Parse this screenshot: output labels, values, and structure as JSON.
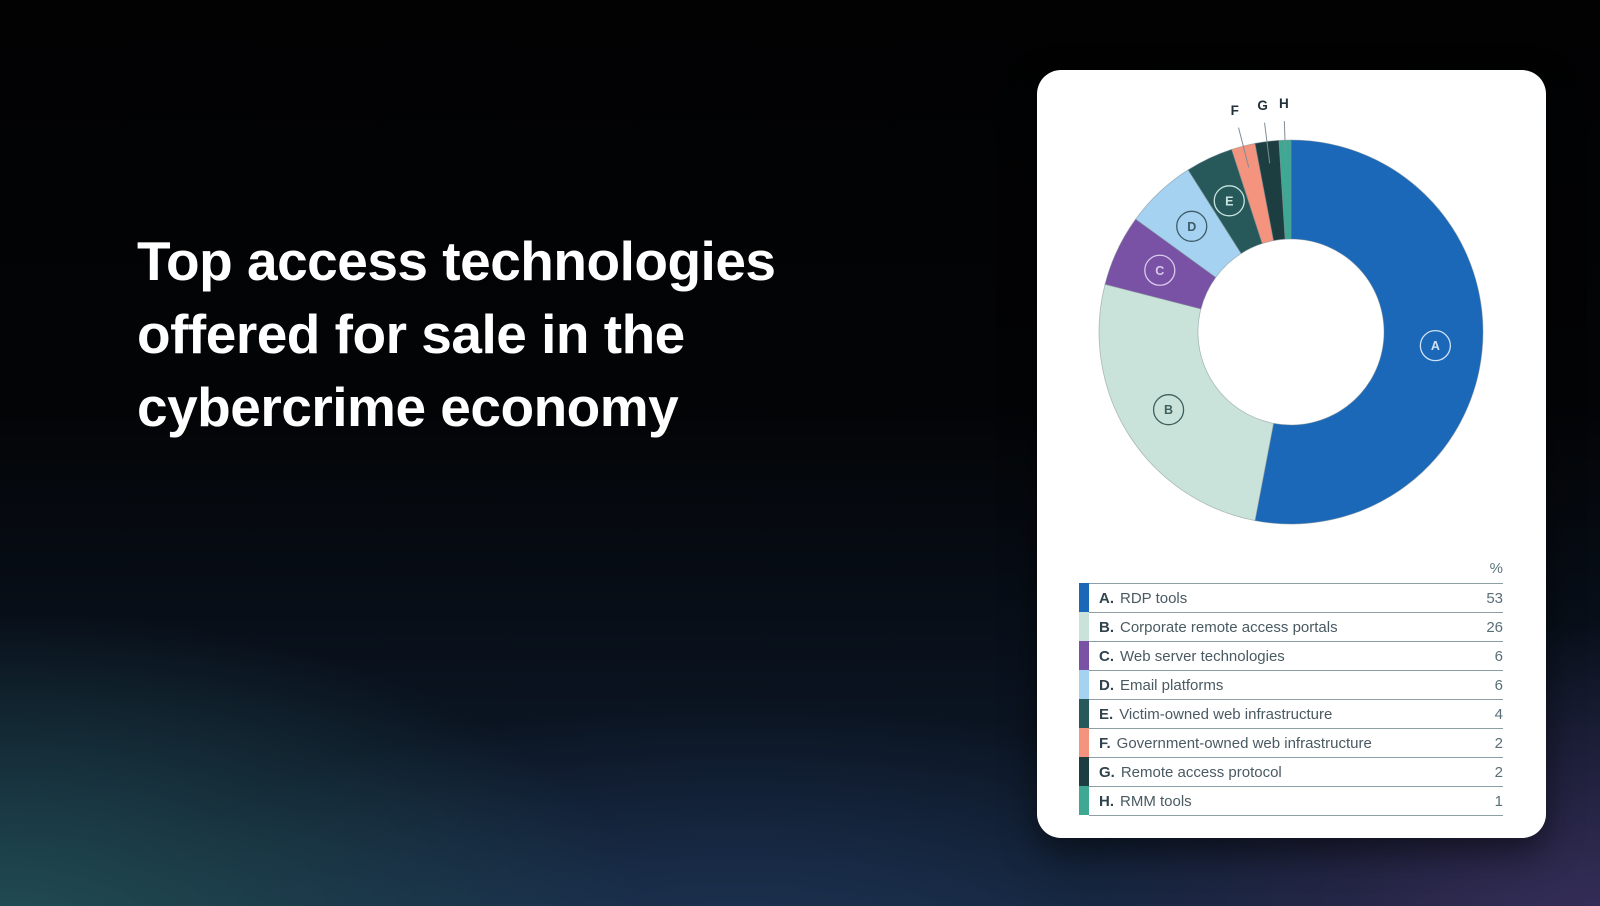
{
  "title": {
    "lines": [
      "Top access technologies",
      "offered for sale in the",
      "cybercrime economy"
    ]
  },
  "card": {
    "value_column_header": "%"
  },
  "chart_data": {
    "type": "pie",
    "subtype": "donut",
    "title": "Top access technologies offered for sale in the cybercrime economy",
    "unit": "%",
    "start_angle": "top",
    "direction": "clockwise",
    "legend_position": "table-below-chart",
    "slices": [
      {
        "letter": "A",
        "prefix": "A.",
        "label": "RDP tools",
        "value": 53,
        "color": "#1b68b8",
        "label_placement": "inside",
        "label_color": "#cfe2f5"
      },
      {
        "letter": "B",
        "prefix": "B.",
        "label": "Corporate remote access portals",
        "value": 26,
        "color": "#c9e2da",
        "label_placement": "inside",
        "label_color": "#3f605e"
      },
      {
        "letter": "C",
        "prefix": "C.",
        "label": "Web server technologies",
        "value": 6,
        "color": "#7a52a5",
        "label_placement": "inside",
        "label_color": "#d9c9ec"
      },
      {
        "letter": "D",
        "prefix": "D.",
        "label": "Email platforms",
        "value": 6,
        "color": "#a6d2f2",
        "label_placement": "inside",
        "label_color": "#3c5b66"
      },
      {
        "letter": "E",
        "prefix": "E.",
        "label": "Victim-owned web infrastructure",
        "value": 4,
        "color": "#27595b",
        "label_placement": "inside",
        "label_color": "#c9e4de"
      },
      {
        "letter": "F",
        "prefix": "F.",
        "label": "Government-owned web infrastructure",
        "value": 2,
        "color": "#f4937e",
        "label_placement": "outside",
        "label_color": "#20313a"
      },
      {
        "letter": "G",
        "prefix": "G.",
        "label": "Remote access protocol",
        "value": 2,
        "color": "#1c3e41",
        "label_placement": "outside",
        "label_color": "#20313a"
      },
      {
        "letter": "H",
        "prefix": "H.",
        "label": "RMM tools",
        "value": 1,
        "color": "#3fa893",
        "label_placement": "outside",
        "label_color": "#20313a"
      }
    ],
    "leader_line_color": "#7f8d95",
    "slice_outline_color": "#7d8c94"
  }
}
